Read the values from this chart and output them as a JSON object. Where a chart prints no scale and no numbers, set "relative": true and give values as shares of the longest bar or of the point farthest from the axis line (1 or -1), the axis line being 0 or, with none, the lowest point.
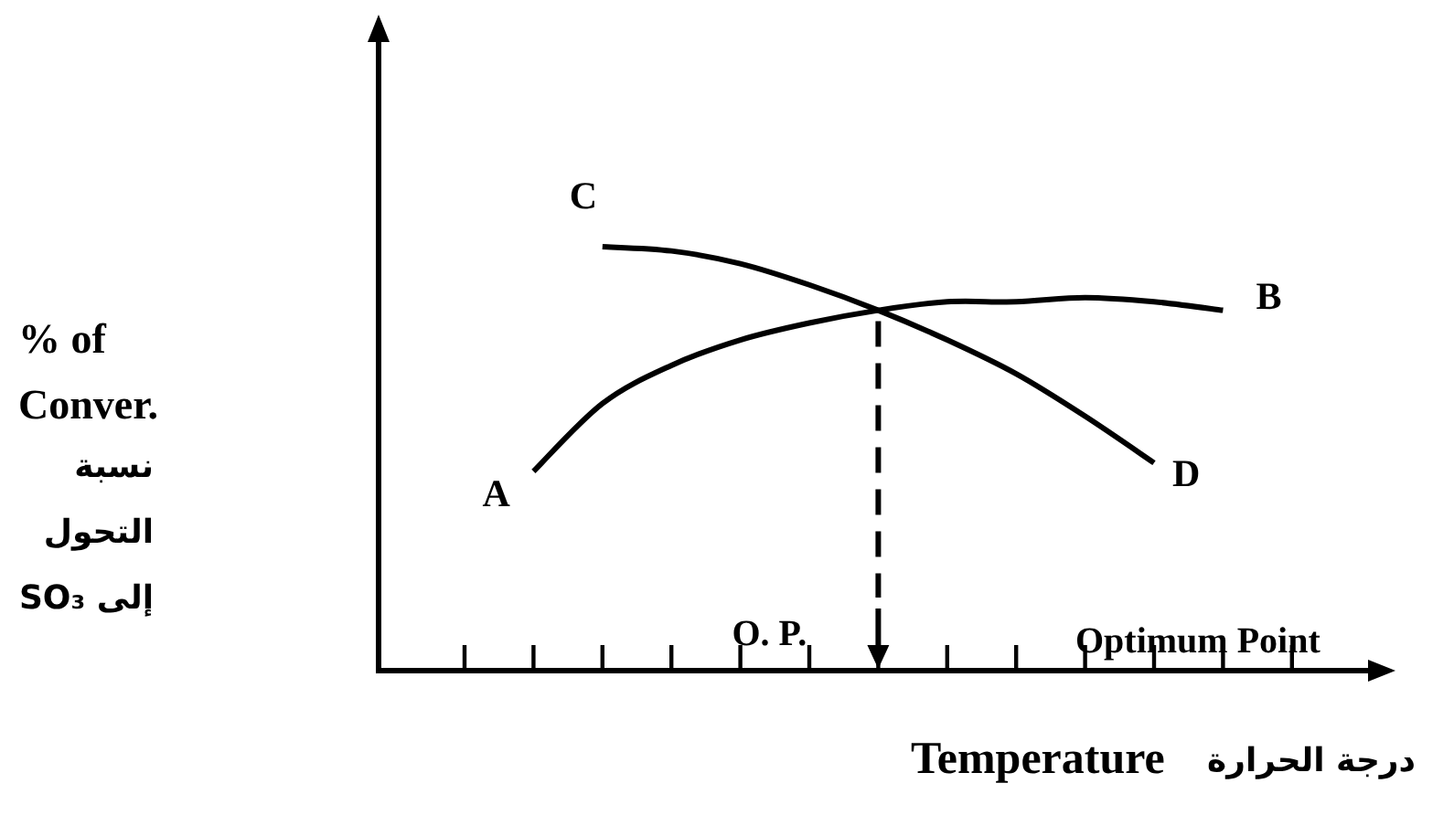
{
  "chart_data": {
    "type": "line",
    "relative": true,
    "xlabel": "Temperature",
    "categories": [
      null,
      null,
      null,
      null,
      null,
      null,
      null,
      null,
      null,
      null,
      null,
      null,
      null
    ],
    "series": [
      {
        "color": "#000000",
        "values": [
          null,
          0.47,
          0.63,
          0.72,
          0.78,
          0.82,
          0.85,
          0.87,
          0.87,
          0.88,
          0.87,
          0.85,
          null
        ]
      },
      {
        "color": "#000000",
        "values": [
          null,
          null,
          1.0,
          0.99,
          0.96,
          0.91,
          0.85,
          0.78,
          0.7,
          0.6,
          0.49,
          null,
          null
        ]
      }
    ],
    "annotations": [
      "A",
      "B",
      "C",
      "D",
      "O. P.",
      "Optimum Point",
      "% of Conver.",
      "نسبة التحول إلى SO₃",
      "درجة الحرارة"
    ],
    "line_style": "solid",
    "marker": "none",
    "legend": false
  }
}
